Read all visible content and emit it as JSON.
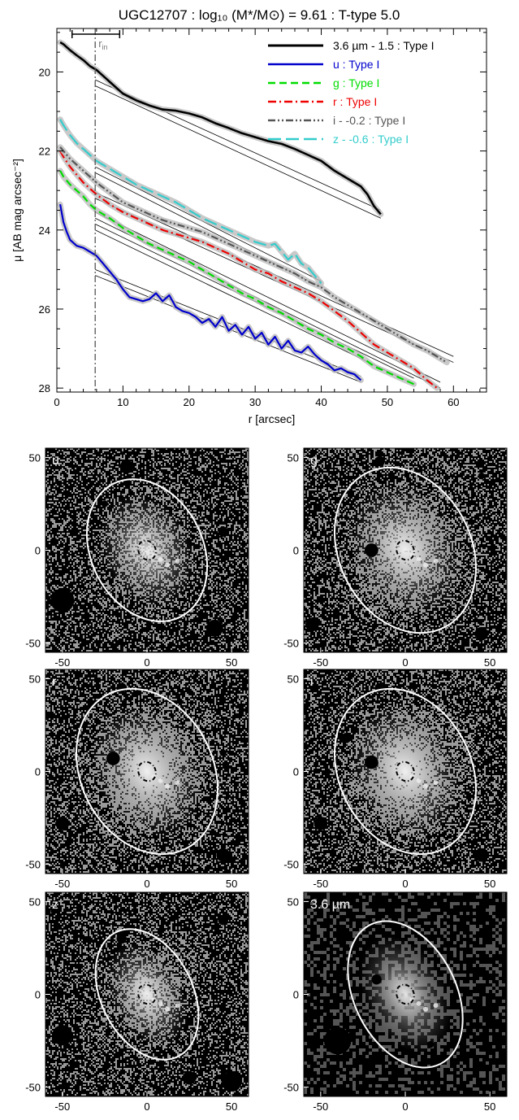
{
  "chart_data": [
    {
      "type": "line",
      "title": "UGC12707 : log₁₀ (M*/M⊙) = 9.61 : T-type 5.0",
      "xlabel": "r [arcsec]",
      "ylabel": "μ [AB mag arcsec⁻²]",
      "xlim": [
        0,
        65
      ],
      "ylim": [
        28.1,
        18.9
      ],
      "y_inverted": true,
      "xticks": [
        0,
        10,
        20,
        30,
        40,
        50,
        60
      ],
      "yticks": [
        20,
        22,
        24,
        26,
        28
      ],
      "grid": false,
      "legend_position": "top-right",
      "r_in_label": "r",
      "r_in_subscript": "in",
      "r_in_value": 5.8,
      "r_in_range": [
        2.3,
        9.5
      ],
      "series": [
        {
          "name": "3.6 µm - 1.5 : Type I",
          "color": "#000000",
          "dash": "solid",
          "x": [
            0.5,
            1,
            2,
            3,
            4,
            5,
            6,
            7,
            8,
            9,
            10,
            12,
            14,
            16,
            18,
            20,
            22,
            24,
            26,
            28,
            30,
            32,
            34,
            36,
            38,
            40,
            42,
            44,
            46,
            47,
            48,
            49
          ],
          "y": [
            19.25,
            19.3,
            19.45,
            19.58,
            19.7,
            19.85,
            19.95,
            20.1,
            20.25,
            20.4,
            20.55,
            20.72,
            20.85,
            20.95,
            20.98,
            21.05,
            21.15,
            21.3,
            21.42,
            21.55,
            21.65,
            21.75,
            21.82,
            21.95,
            22.1,
            22.25,
            22.5,
            22.7,
            22.9,
            23.1,
            23.4,
            23.6
          ],
          "fits": [
            {
              "x": [
                5.8,
                49
              ],
              "y": [
                20.2,
                23.5
              ]
            },
            {
              "x": [
                5.8,
                49
              ],
              "y": [
                20.35,
                23.7
              ]
            }
          ]
        },
        {
          "name": "u : Type I",
          "color": "#0000cc",
          "dash": "solid",
          "x": [
            0.5,
            1,
            1.5,
            2,
            3,
            4,
            5,
            6,
            7,
            8,
            9,
            10,
            11,
            12,
            13,
            14,
            15,
            16,
            17,
            18,
            19,
            20,
            21,
            22,
            23,
            24,
            25,
            26,
            27,
            28,
            29,
            30,
            31,
            32,
            33,
            34,
            35,
            36,
            37,
            38,
            39,
            40,
            41,
            42,
            43,
            44,
            45,
            46
          ],
          "y": [
            23.35,
            23.8,
            24.05,
            24.25,
            24.4,
            24.45,
            24.55,
            24.65,
            24.85,
            25.05,
            25.25,
            25.5,
            25.7,
            25.75,
            25.8,
            25.75,
            25.6,
            25.8,
            25.65,
            25.95,
            26.05,
            26.1,
            26.2,
            26.35,
            26.25,
            26.45,
            26.2,
            26.55,
            26.4,
            26.65,
            26.45,
            26.75,
            26.6,
            26.9,
            26.7,
            27.0,
            26.8,
            27.05,
            27.1,
            26.95,
            27.15,
            27.3,
            27.4,
            27.55,
            27.5,
            27.6,
            27.65,
            27.8
          ],
          "fits": [
            {
              "x": [
                5.8,
                46
              ],
              "y": [
                25.0,
                27.7
              ]
            },
            {
              "x": [
                5.8,
                46
              ],
              "y": [
                25.15,
                27.85
              ]
            }
          ]
        },
        {
          "name": "g : Type I",
          "color": "#00dd00",
          "dash": "dashed",
          "x": [
            0.5,
            1,
            2,
            3,
            4,
            5,
            6,
            8,
            10,
            12,
            14,
            16,
            18,
            20,
            22,
            24,
            26,
            28,
            30,
            32,
            34,
            36,
            38,
            40,
            42,
            44,
            46,
            48,
            50,
            52,
            54
          ],
          "y": [
            22.5,
            22.65,
            22.85,
            23.0,
            23.15,
            23.35,
            23.5,
            23.7,
            23.95,
            24.15,
            24.35,
            24.5,
            24.65,
            24.8,
            25.0,
            25.2,
            25.4,
            25.6,
            25.75,
            25.95,
            26.1,
            26.3,
            26.5,
            26.65,
            26.85,
            27.0,
            27.2,
            27.45,
            27.6,
            27.75,
            27.9
          ],
          "fits": [
            {
              "x": [
                5.8,
                54
              ],
              "y": [
                23.85,
                27.75
              ]
            },
            {
              "x": [
                5.8,
                54
              ],
              "y": [
                24.0,
                27.9
              ]
            }
          ]
        },
        {
          "name": "r : Type I",
          "color": "#ee0000",
          "dash": "dashdot",
          "x": [
            0.5,
            1,
            2,
            3,
            4,
            5,
            6,
            8,
            10,
            12,
            14,
            16,
            18,
            20,
            22,
            24,
            26,
            28,
            30,
            32,
            34,
            36,
            38,
            40,
            42,
            44,
            46,
            48,
            50,
            52,
            54,
            56,
            57.5
          ],
          "y": [
            22.0,
            22.15,
            22.4,
            22.6,
            22.8,
            22.95,
            23.1,
            23.35,
            23.55,
            23.7,
            23.85,
            24.0,
            24.1,
            24.2,
            24.3,
            24.45,
            24.6,
            24.8,
            25.0,
            25.1,
            25.3,
            25.45,
            25.6,
            25.8,
            26.05,
            26.3,
            26.6,
            26.9,
            27.1,
            27.3,
            27.5,
            27.8,
            28.0
          ],
          "fits": [
            {
              "x": [
                5.8,
                58
              ],
              "y": [
                23.55,
                27.85
              ]
            },
            {
              "x": [
                5.8,
                58
              ],
              "y": [
                23.7,
                28.0
              ]
            }
          ]
        },
        {
          "name": "i - -0.2 : Type I",
          "color": "#555555",
          "dash": "dashdotdot",
          "x": [
            0.5,
            1,
            2,
            3,
            4,
            5,
            6,
            8,
            10,
            12,
            14,
            16,
            18,
            20,
            22,
            24,
            26,
            28,
            30,
            32,
            34,
            36,
            38,
            40,
            42,
            44,
            46,
            48,
            50,
            52,
            54,
            56,
            58,
            59
          ],
          "y": [
            21.9,
            22.0,
            22.2,
            22.35,
            22.5,
            22.65,
            22.8,
            23.05,
            23.3,
            23.45,
            23.6,
            23.75,
            23.85,
            23.95,
            24.05,
            24.2,
            24.35,
            24.5,
            24.65,
            24.8,
            24.95,
            25.1,
            25.3,
            25.45,
            25.7,
            25.9,
            26.1,
            26.3,
            26.5,
            26.7,
            26.9,
            27.05,
            27.25,
            27.35
          ],
          "fits": [
            {
              "x": [
                5.8,
                60
              ],
              "y": [
                23.05,
                27.2
              ]
            },
            {
              "x": [
                5.8,
                60
              ],
              "y": [
                23.2,
                27.35
              ]
            }
          ]
        },
        {
          "name": "z - -0.6 : Type I",
          "color": "#33cccc",
          "dash": "longdash",
          "x": [
            0.5,
            1,
            2,
            3,
            4,
            5,
            6,
            8,
            10,
            12,
            14,
            16,
            18,
            20,
            22,
            24,
            26,
            28,
            30,
            32,
            33,
            34,
            35,
            36,
            37,
            38,
            39,
            40
          ],
          "y": [
            21.2,
            21.35,
            21.6,
            21.8,
            21.95,
            22.1,
            22.25,
            22.45,
            22.65,
            22.85,
            23.0,
            23.15,
            23.3,
            23.5,
            23.7,
            23.85,
            24.0,
            24.15,
            24.3,
            24.4,
            24.35,
            24.55,
            24.75,
            24.6,
            24.85,
            24.95,
            25.15,
            25.35
          ],
          "fits": [
            {
              "x": [
                5.8,
                40
              ],
              "y": [
                22.4,
                25.3
              ]
            },
            {
              "x": [
                5.8,
                40
              ],
              "y": [
                22.55,
                25.45
              ]
            }
          ]
        }
      ]
    },
    {
      "type": "image_panels",
      "xlim": [
        -60,
        60
      ],
      "ylim": [
        -55,
        55
      ],
      "xticks": [
        -50,
        0,
        50
      ],
      "yticks": [
        -50,
        0,
        50
      ],
      "panels": [
        {
          "label": "u",
          "ellipse": {
            "a": 44,
            "b": 33,
            "angle_deg": 63
          },
          "brightness": 0.35,
          "stars": [
            [
              -50,
              -27,
              7
            ],
            [
              40,
              -42,
              5
            ],
            [
              -12,
              45,
              4
            ],
            [
              45,
              10,
              3
            ],
            [
              -25,
              25,
              2
            ],
            [
              -55,
              5,
              2
            ]
          ]
        },
        {
          "label": "g",
          "ellipse": {
            "a": 51,
            "b": 39,
            "angle_deg": 63
          },
          "brightness": 0.6,
          "stars": [
            [
              -20,
              0,
              4
            ],
            [
              -55,
              -40,
              4
            ],
            [
              45,
              -45,
              4
            ],
            [
              -15,
              48,
              3
            ],
            [
              45,
              40,
              2
            ]
          ]
        },
        {
          "label": "r",
          "ellipse": {
            "a": 51,
            "b": 39,
            "angle_deg": 63
          },
          "brightness": 0.7,
          "stars": [
            [
              -20,
              7,
              4
            ],
            [
              -50,
              -28,
              4
            ],
            [
              45,
              -45,
              4
            ],
            [
              -15,
              45,
              3
            ],
            [
              45,
              10,
              2
            ]
          ]
        },
        {
          "label": "i",
          "ellipse": {
            "a": 51,
            "b": 39,
            "angle_deg": 63
          },
          "brightness": 0.7,
          "stars": [
            [
              -20,
              5,
              4
            ],
            [
              -50,
              -28,
              4
            ],
            [
              45,
              -45,
              4
            ],
            [
              -15,
              45,
              3
            ],
            [
              45,
              10,
              2
            ],
            [
              -35,
              18,
              3
            ]
          ]
        },
        {
          "label": "z",
          "ellipse": {
            "a": 41,
            "b": 27,
            "angle_deg": 63
          },
          "brightness": 0.5,
          "stars": [
            [
              -50,
              -22,
              6
            ],
            [
              50,
              -47,
              6
            ],
            [
              -15,
              30,
              3
            ],
            [
              45,
              40,
              3
            ],
            [
              -55,
              45,
              2
            ],
            [
              25,
              -45,
              4
            ]
          ]
        },
        {
          "label": "3.6 µm",
          "ellipse": {
            "a": 46,
            "b": 30,
            "angle_deg": 63
          },
          "brightness": 0.55,
          "stars": [
            [
              -40,
              -25,
              8
            ],
            [
              -17,
              8,
              3
            ],
            [
              15,
              -27,
              2
            ]
          ]
        }
      ]
    }
  ]
}
